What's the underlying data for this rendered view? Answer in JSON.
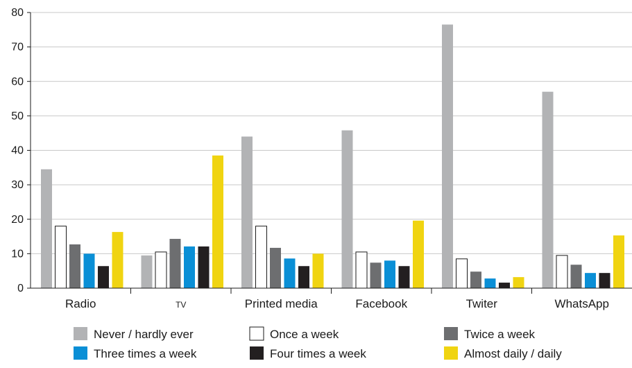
{
  "chart_data": {
    "type": "bar",
    "title": "",
    "xlabel": "",
    "ylabel": "",
    "ylim": [
      0,
      80
    ],
    "yticks": [
      0,
      10,
      20,
      30,
      40,
      50,
      60,
      70,
      80
    ],
    "grid": true,
    "legend_position": "bottom",
    "categories": [
      "Radio",
      "TV",
      "Printed media",
      "Facebook",
      "Twiter",
      "WhatsApp"
    ],
    "series": [
      {
        "name": "Never / hardly ever",
        "color": "#b2b3b5",
        "values": [
          34.5,
          9.5,
          44.0,
          45.8,
          76.5,
          57.0
        ]
      },
      {
        "name": "Once a week",
        "color": "#ffffff",
        "values": [
          18.0,
          10.5,
          18.0,
          10.5,
          8.5,
          9.5
        ]
      },
      {
        "name": "Twice a week",
        "color": "#6d6e70",
        "values": [
          12.7,
          14.3,
          11.7,
          7.4,
          4.8,
          6.8
        ]
      },
      {
        "name": "Three times a week",
        "color": "#0a8fd6",
        "values": [
          10.0,
          12.1,
          8.6,
          8.0,
          2.8,
          4.4
        ]
      },
      {
        "name": "Four times a week",
        "color": "#231f20",
        "values": [
          6.4,
          12.1,
          6.4,
          6.4,
          1.6,
          4.4
        ]
      },
      {
        "name": "Almost daily / daily",
        "color": "#f0d411",
        "values": [
          16.3,
          38.5,
          10.0,
          19.6,
          3.2,
          15.3
        ]
      }
    ]
  }
}
